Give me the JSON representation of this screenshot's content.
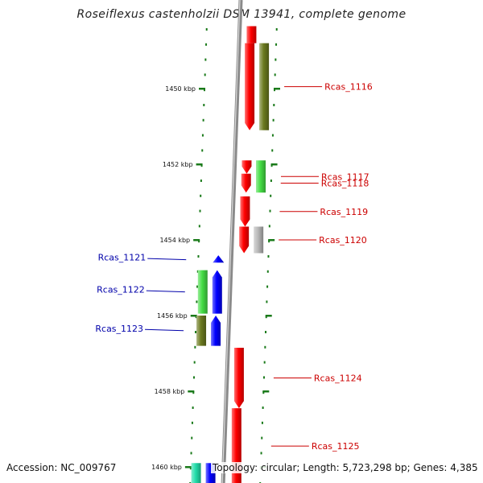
{
  "title": "Roseiflexus castenholzii DSM 13941, complete genome",
  "accession": "Accession: NC_009767",
  "info": "Topology: circular; Length: 5,723,298 bp; Genes: 4,385",
  "colors": {
    "backbone": "#8a8a8a",
    "tick": "#1a7a1a",
    "red": "#ff0000",
    "olive": "#6b7a1f",
    "green": "#44dd44",
    "grey": "#b8b8b8",
    "blue": "#0000ff",
    "teal": "#22ddaa",
    "label_right": "#cc0000",
    "label_left": "#0000aa"
  },
  "kbp_ticks": [
    {
      "kbp": 1450,
      "label": "1450 kbp"
    },
    {
      "kbp": 1452,
      "label": "1452 kbp"
    },
    {
      "kbp": 1454,
      "label": "1454 kbp"
    },
    {
      "kbp": 1456,
      "label": "1456 kbp"
    },
    {
      "kbp": 1458,
      "label": "1458 kbp"
    },
    {
      "kbp": 1460,
      "label": "1460 kbp"
    }
  ],
  "genes": [
    {
      "name": "",
      "strand": "+",
      "track": 0,
      "start": 1448.35,
      "end": 1448.8,
      "color": "red",
      "arrow": "cut"
    },
    {
      "name": "",
      "strand": "+",
      "track": 0,
      "start": 1448.8,
      "end": 1451.1,
      "color": "red",
      "arrow": "down"
    },
    {
      "name": "Rcas_1116",
      "strand": "+",
      "track": 1,
      "start": 1448.8,
      "end": 1451.1,
      "color": "olive",
      "arrow": "none"
    },
    {
      "name": "",
      "strand": "+",
      "track": 0,
      "start": 1451.9,
      "end": 1452.25,
      "color": "red",
      "arrow": "down"
    },
    {
      "name": "Rcas_1117",
      "strand": "+",
      "track": 1,
      "start": 1451.9,
      "end": 1452.75,
      "color": "green",
      "arrow": "none"
    },
    {
      "name": "Rcas_1118",
      "strand": "+",
      "track": 0,
      "start": 1452.25,
      "end": 1452.75,
      "color": "red",
      "arrow": "down"
    },
    {
      "name": "Rcas_1119",
      "strand": "+",
      "track": 0,
      "start": 1452.85,
      "end": 1453.65,
      "color": "red",
      "arrow": "down"
    },
    {
      "name": "Rcas_1120",
      "strand": "+",
      "track": 0,
      "start": 1453.65,
      "end": 1454.35,
      "color": "red",
      "arrow": "down"
    },
    {
      "name": "",
      "strand": "+",
      "track": 1,
      "start": 1453.65,
      "end": 1454.35,
      "color": "grey",
      "arrow": "none"
    },
    {
      "name": "Rcas_1121",
      "strand": "-",
      "track": 0,
      "start": 1454.45,
      "end": 1454.6,
      "color": "blue",
      "arrow": "up"
    },
    {
      "name": "Rcas_1122",
      "strand": "-",
      "track": 0,
      "start": 1454.8,
      "end": 1455.95,
      "color": "blue",
      "arrow": "up"
    },
    {
      "name": "",
      "strand": "-",
      "track": 1,
      "start": 1454.8,
      "end": 1455.95,
      "color": "green",
      "arrow": "none"
    },
    {
      "name": "Rcas_1123",
      "strand": "-",
      "track": 0,
      "start": 1456.0,
      "end": 1456.8,
      "color": "blue",
      "arrow": "up"
    },
    {
      "name": "",
      "strand": "-",
      "track": 1,
      "start": 1456.0,
      "end": 1456.8,
      "color": "olive",
      "arrow": "none"
    },
    {
      "name": "Rcas_1124",
      "strand": "+",
      "track": 0,
      "start": 1456.85,
      "end": 1458.45,
      "color": "red",
      "arrow": "down"
    },
    {
      "name": "Rcas_1125",
      "strand": "+",
      "track": 0,
      "start": 1458.45,
      "end": 1460.45,
      "color": "red",
      "arrow": "cut"
    },
    {
      "name": "",
      "strand": "-",
      "track": 0,
      "start": 1459.9,
      "end": 1460.45,
      "color": "blue",
      "arrow": "cut"
    },
    {
      "name": "",
      "strand": "-",
      "track": 1,
      "start": 1459.9,
      "end": 1460.45,
      "color": "teal",
      "arrow": "cut"
    }
  ]
}
